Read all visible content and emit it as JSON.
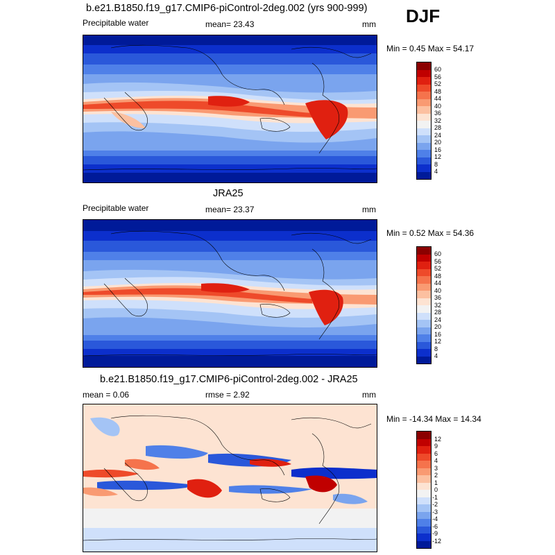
{
  "season": "DJF",
  "panels": [
    {
      "title": "b.e21.B1850.f19_g17.CMIP6-piControl-2deg.002 (yrs 900-999)",
      "left_label": "Precipitable water",
      "center_label": "mean=  23.43",
      "right_label": "mm",
      "minmax": "Min =   0.45 Max =  54.17",
      "colorbar_labels": [
        "60",
        "56",
        "52",
        "48",
        "44",
        "40",
        "36",
        "32",
        "28",
        "24",
        "20",
        "16",
        "12",
        "8",
        "4"
      ],
      "colors": [
        "#8b0000",
        "#c00000",
        "#e02010",
        "#ee4a2a",
        "#f5734c",
        "#f99a72",
        "#fcc0a0",
        "#fde3d2",
        "#f2f2f2",
        "#cfe0fb",
        "#a4c4f5",
        "#7aa4ee",
        "#4f80e8",
        "#2a58da",
        "#0c2fcc",
        "#001a99"
      ]
    },
    {
      "title": "JRA25",
      "left_label": "Precipitable water",
      "center_label": "mean=  23.37",
      "right_label": "mm",
      "minmax": "Min =   0.52 Max =  54.36",
      "colorbar_labels": [
        "60",
        "56",
        "52",
        "48",
        "44",
        "40",
        "36",
        "32",
        "28",
        "24",
        "20",
        "16",
        "12",
        "8",
        "4"
      ],
      "colors": [
        "#8b0000",
        "#c00000",
        "#e02010",
        "#ee4a2a",
        "#f5734c",
        "#f99a72",
        "#fcc0a0",
        "#fde3d2",
        "#f2f2f2",
        "#cfe0fb",
        "#a4c4f5",
        "#7aa4ee",
        "#4f80e8",
        "#2a58da",
        "#0c2fcc",
        "#001a99"
      ]
    },
    {
      "title": "b.e21.B1850.f19_g17.CMIP6-piControl-2deg.002 - JRA25",
      "left_label": "mean =   0.06",
      "center_label": "rmse =   2.92",
      "right_label": "mm",
      "minmax": "Min = -14.34 Max =  14.34",
      "colorbar_labels": [
        "12",
        "9",
        "6",
        "4",
        "3",
        "2",
        "1",
        "0",
        "-1",
        "-2",
        "-3",
        "-4",
        "-6",
        "-9",
        "-12"
      ],
      "colors": [
        "#8b0000",
        "#c00000",
        "#e02010",
        "#ee4a2a",
        "#f5734c",
        "#f99a72",
        "#fcc0a0",
        "#fde3d2",
        "#f2f2f2",
        "#cfe0fb",
        "#a4c4f5",
        "#7aa4ee",
        "#4f80e8",
        "#2a58da",
        "#0c2fcc",
        "#001a99"
      ]
    }
  ]
}
